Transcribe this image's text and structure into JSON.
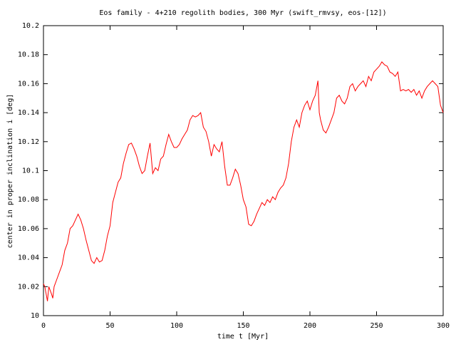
{
  "chart_data": {
    "type": "line",
    "title": "Eos family - 4+210 regolith bodies, 300 Myr (swift_rmvsy, eos-[12])",
    "x_label": "time t [Myr]",
    "y_label": "center in proper inclination i [deg]",
    "xlim": [
      0,
      300
    ],
    "xticks": [
      0,
      50,
      100,
      150,
      200,
      250,
      300
    ],
    "ylim": [
      10,
      10.2
    ],
    "yticks": [
      10,
      10.02,
      10.04,
      10.06,
      10.08,
      10.1,
      10.12,
      10.14,
      10.16,
      10.18,
      10.2
    ],
    "x": [
      0,
      1,
      3,
      4,
      6,
      7,
      8,
      10,
      12,
      14,
      16,
      18,
      20,
      22,
      24,
      26,
      28,
      30,
      32,
      34,
      36,
      38,
      40,
      42,
      44,
      46,
      48,
      50,
      52,
      54,
      56,
      58,
      60,
      62,
      64,
      66,
      68,
      70,
      72,
      74,
      76,
      78,
      80,
      82,
      84,
      86,
      88,
      90,
      92,
      94,
      96,
      98,
      100,
      102,
      104,
      106,
      108,
      110,
      112,
      114,
      116,
      118,
      120,
      122,
      124,
      126,
      128,
      130,
      132,
      134,
      136,
      138,
      140,
      142,
      144,
      146,
      148,
      150,
      152,
      154,
      156,
      158,
      160,
      162,
      164,
      166,
      168,
      170,
      172,
      174,
      176,
      178,
      180,
      182,
      184,
      186,
      188,
      190,
      192,
      194,
      196,
      198,
      200,
      202,
      204,
      206,
      207,
      208,
      210,
      212,
      214,
      216,
      218,
      220,
      222,
      224,
      226,
      228,
      230,
      232,
      234,
      236,
      238,
      240,
      242,
      244,
      246,
      248,
      250,
      252,
      254,
      256,
      258,
      260,
      262,
      264,
      266,
      268,
      270,
      272,
      274,
      276,
      278,
      280,
      282,
      284,
      286,
      288,
      290,
      292,
      294,
      296,
      298,
      300
    ],
    "series": [
      {
        "color": "#ff0000",
        "values": [
          10.022,
          10.02,
          10.01,
          10.02,
          10.015,
          10.012,
          10.02,
          10.025,
          10.03,
          10.035,
          10.045,
          10.05,
          10.06,
          10.062,
          10.066,
          10.07,
          10.066,
          10.06,
          10.052,
          10.045,
          10.038,
          10.036,
          10.04,
          10.037,
          10.038,
          10.045,
          10.055,
          10.062,
          10.078,
          10.085,
          10.092,
          10.095,
          10.105,
          10.112,
          10.118,
          10.119,
          10.115,
          10.11,
          10.103,
          10.098,
          10.1,
          10.11,
          10.119,
          10.098,
          10.102,
          10.1,
          10.108,
          10.11,
          10.118,
          10.125,
          10.12,
          10.116,
          10.116,
          10.118,
          10.122,
          10.125,
          10.128,
          10.135,
          10.138,
          10.137,
          10.138,
          10.14,
          10.13,
          10.127,
          10.12,
          10.11,
          10.118,
          10.115,
          10.113,
          10.12,
          10.103,
          10.09,
          10.09,
          10.095,
          10.101,
          10.098,
          10.09,
          10.08,
          10.075,
          10.063,
          10.062,
          10.065,
          10.07,
          10.074,
          10.078,
          10.076,
          10.08,
          10.078,
          10.082,
          10.08,
          10.085,
          10.088,
          10.09,
          10.095,
          10.105,
          10.12,
          10.13,
          10.135,
          10.13,
          10.14,
          10.145,
          10.148,
          10.142,
          10.148,
          10.152,
          10.162,
          10.14,
          10.135,
          10.128,
          10.126,
          10.13,
          10.135,
          10.14,
          10.15,
          10.152,
          10.148,
          10.146,
          10.15,
          10.158,
          10.16,
          10.155,
          10.158,
          10.16,
          10.162,
          10.158,
          10.165,
          10.162,
          10.168,
          10.17,
          10.172,
          10.175,
          10.173,
          10.172,
          10.168,
          10.167,
          10.165,
          10.168,
          10.155,
          10.156,
          10.155,
          10.156,
          10.154,
          10.156,
          10.152,
          10.155,
          10.15,
          10.155,
          10.158,
          10.16,
          10.162,
          10.16,
          10.158,
          10.145,
          10.14
        ]
      }
    ]
  }
}
